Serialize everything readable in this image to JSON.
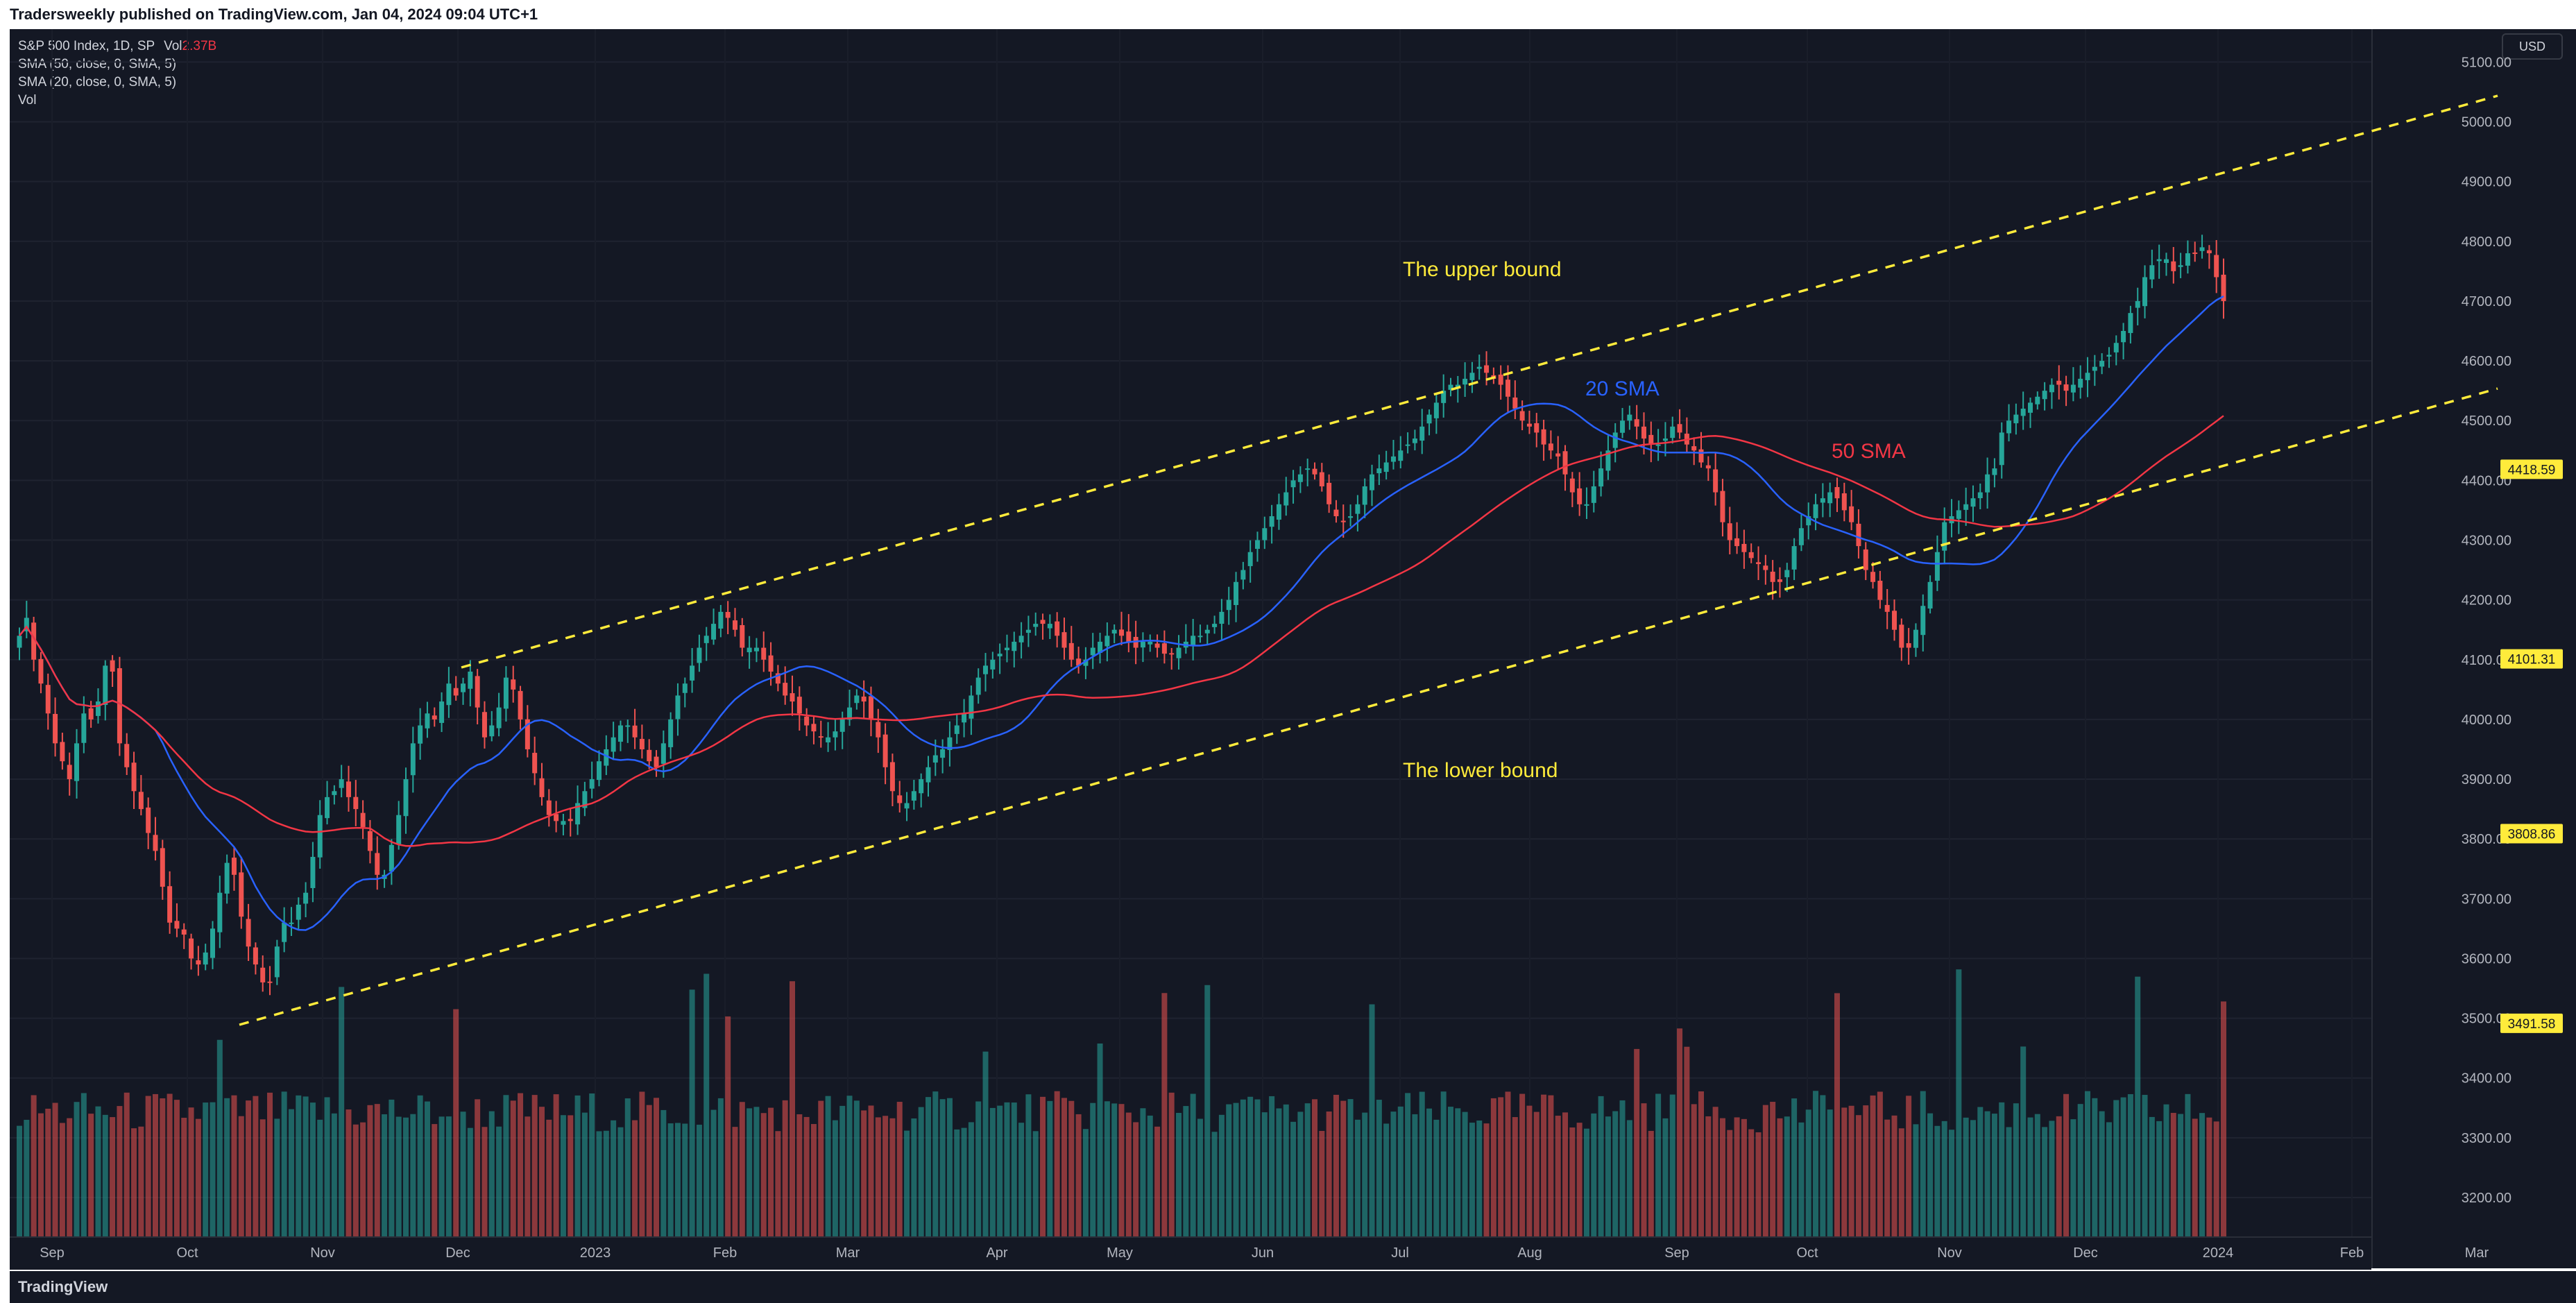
{
  "page": {
    "published_by": "Tradersweekly published on TradingView.com, Jan 04, 2024 09:04 UTC+1",
    "brand": "TradingView",
    "currency": "USD"
  },
  "legend": {
    "symbol": "S&P 500 Index, 1D, SP",
    "vol_prefix": "Vol",
    "vol_value": "2.37B",
    "sma50": "SMA (50, close, 0, SMA, 5)",
    "sma20": "SMA (20, close, 0, SMA, 5)",
    "vol_label": "Vol"
  },
  "chart_data": {
    "type": "candlestick",
    "x_ticks": [
      "Sep",
      "Oct",
      "Nov",
      "Dec",
      "2023",
      "Feb",
      "Mar",
      "Apr",
      "May",
      "Jun",
      "Jul",
      "Aug",
      "Sep",
      "Oct",
      "Nov",
      "Dec",
      "2024",
      "Feb",
      "Mar"
    ],
    "y_ticks": [
      3200,
      3300,
      3400,
      3500,
      3600,
      3700,
      3800,
      3900,
      4000,
      4100,
      4200,
      4300,
      4400,
      4500,
      4600,
      4700,
      4800,
      4900,
      5000,
      5100
    ],
    "y_tick_labels": [
      "3200.00",
      "3300.00",
      "3400.00",
      "3500.00",
      "3600.00",
      "3700.00",
      "3800.00",
      "3900.00",
      "4000.00",
      "4100.00",
      "4200.00",
      "4300.00",
      "4400.00",
      "4500.00",
      "4600.00",
      "4700.00",
      "4800.00",
      "4900.00",
      "5000.00",
      "5100.00"
    ],
    "ylim": [
      3135,
      5155
    ],
    "price_markers": [
      {
        "label": "4418.59",
        "value": 4418.59
      },
      {
        "label": "4101.31",
        "value": 4101.31
      },
      {
        "label": "3808.86",
        "value": 3808.86
      },
      {
        "label": "3491.58",
        "value": 3491.58
      }
    ],
    "approximate_closes": [
      4140,
      4170,
      4100,
      4060,
      4010,
      3960,
      3930,
      3900,
      3960,
      4010,
      4000,
      4030,
      4090,
      4080,
      3960,
      3920,
      3880,
      3850,
      3810,
      3780,
      3720,
      3660,
      3650,
      3640,
      3600,
      3590,
      3610,
      3650,
      3710,
      3760,
      3740,
      3670,
      3620,
      3590,
      3560,
      3560,
      3620,
      3660,
      3660,
      3690,
      3710,
      3770,
      3840,
      3870,
      3880,
      3900,
      3870,
      3850,
      3820,
      3780,
      3740,
      3740,
      3790,
      3840,
      3900,
      3960,
      3990,
      4010,
      4000,
      4030,
      4060,
      4040,
      4060,
      4080,
      4020,
      3970,
      3990,
      4020,
      4070,
      4050,
      4000,
      3950,
      3910,
      3870,
      3840,
      3830,
      3830,
      3830,
      3860,
      3880,
      3900,
      3930,
      3950,
      3970,
      3990,
      3990,
      3970,
      3950,
      3930,
      3920,
      3960,
      4000,
      4040,
      4060,
      4090,
      4120,
      4140,
      4160,
      4180,
      4170,
      4150,
      4120,
      4120,
      4120,
      4100,
      4080,
      4060,
      4040,
      4030,
      4010,
      3990,
      3980,
      3970,
      3970,
      3980,
      4000,
      4020,
      4040,
      4030,
      4000,
      3970,
      3920,
      3880,
      3860,
      3860,
      3880,
      3900,
      3920,
      3940,
      3950,
      3970,
      3990,
      4010,
      4040,
      4070,
      4090,
      4100,
      4110,
      4120,
      4130,
      4140,
      4150,
      4160,
      4160,
      4160,
      4140,
      4120,
      4100,
      4090,
      4100,
      4120,
      4130,
      4140,
      4150,
      4140,
      4130,
      4120,
      4130,
      4130,
      4120,
      4110,
      4110,
      4120,
      4130,
      4140,
      4140,
      4150,
      4160,
      4180,
      4200,
      4230,
      4250,
      4280,
      4300,
      4320,
      4340,
      4360,
      4380,
      4400,
      4410,
      4420,
      4410,
      4390,
      4360,
      4340,
      4330,
      4340,
      4360,
      4390,
      4410,
      4420,
      4430,
      4440,
      4450,
      4460,
      4470,
      4490,
      4510,
      4530,
      4550,
      4560,
      4560,
      4570,
      4580,
      4590,
      4580,
      4570,
      4560,
      4540,
      4520,
      4500,
      4490,
      4480,
      4460,
      4450,
      4440,
      4410,
      4380,
      4360,
      4360,
      4390,
      4420,
      4450,
      4480,
      4500,
      4510,
      4490,
      4470,
      4460,
      4460,
      4470,
      4490,
      4480,
      4460,
      4450,
      4430,
      4420,
      4380,
      4330,
      4300,
      4290,
      4280,
      4270,
      4260,
      4250,
      4230,
      4230,
      4250,
      4290,
      4320,
      4340,
      4360,
      4370,
      4380,
      4370,
      4350,
      4330,
      4290,
      4250,
      4230,
      4200,
      4180,
      4150,
      4120,
      4120,
      4150,
      4190,
      4230,
      4280,
      4330,
      4340,
      4350,
      4360,
      4370,
      4380,
      4410,
      4420,
      4480,
      4500,
      4510,
      4520,
      4530,
      4540,
      4550,
      4560,
      4560,
      4550,
      4560,
      4570,
      4580,
      4590,
      4600,
      4610,
      4630,
      4650,
      4680,
      4700,
      4740,
      4760,
      4770,
      4770,
      4750,
      4760,
      4780,
      4780,
      4790,
      4780,
      4740,
      4700
    ]
  },
  "annotations": {
    "upper_bound": "The upper bound",
    "lower_bound": "The lower bound",
    "sma20": "20 SMA",
    "sma50": "50 SMA"
  },
  "colors": {
    "up": "#26a69a",
    "down": "#ef5350",
    "sma20": "#2962ff",
    "sma50": "#f23645",
    "channel": "#ffeb3b",
    "axis_text": "#b2b5be",
    "marker_bg": "#ffeb3b",
    "marker_text": "#131722"
  }
}
